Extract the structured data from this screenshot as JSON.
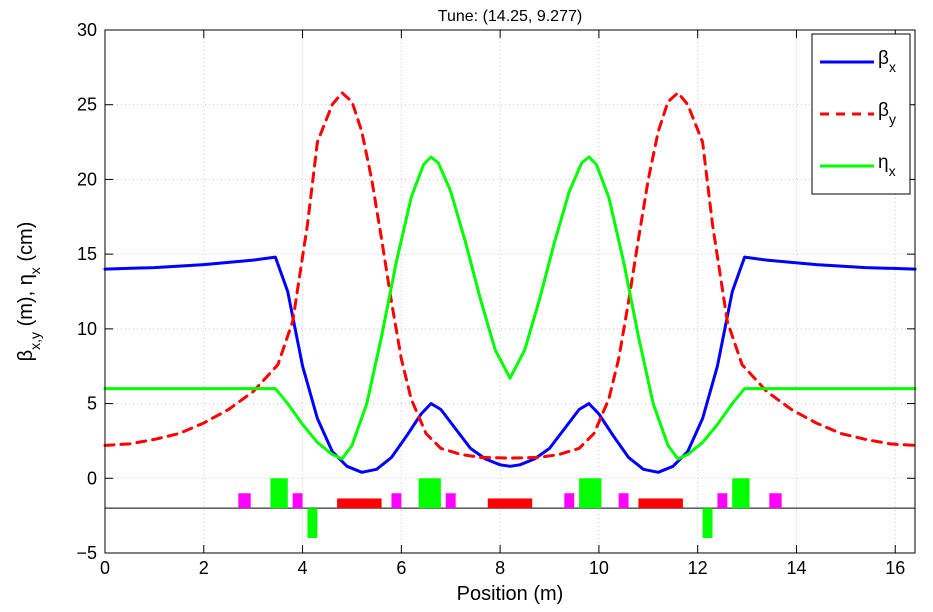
{
  "chart_data": {
    "type": "line",
    "title": "Tune: (14.25, 9.277)",
    "xlabel": "Position (m)",
    "ylabel_parts": [
      {
        "text": "β",
        "sub": false
      },
      {
        "text": "x,y",
        "sub": true
      },
      {
        "text": " (m), η",
        "sub": false
      },
      {
        "text": "x",
        "sub": true
      },
      {
        "text": " (cm)",
        "sub": false
      }
    ],
    "xlim": [
      0,
      16.4
    ],
    "ylim": [
      -5,
      30
    ],
    "xticks": [
      0,
      2,
      4,
      6,
      8,
      10,
      12,
      14,
      16
    ],
    "yticks": [
      -5,
      0,
      5,
      10,
      15,
      20,
      25,
      30
    ],
    "grid": true,
    "legend_position": "top-right",
    "series": [
      {
        "name": "β",
        "name_sub": "x",
        "color": "#0000ff",
        "dash": "solid",
        "points": [
          [
            0,
            14
          ],
          [
            1,
            14.1
          ],
          [
            2,
            14.3
          ],
          [
            3,
            14.6
          ],
          [
            3.45,
            14.8
          ],
          [
            3.7,
            12.5
          ],
          [
            4.0,
            7.5
          ],
          [
            4.3,
            4.0
          ],
          [
            4.6,
            1.8
          ],
          [
            4.9,
            0.8
          ],
          [
            5.2,
            0.4
          ],
          [
            5.5,
            0.6
          ],
          [
            5.8,
            1.4
          ],
          [
            6.1,
            2.8
          ],
          [
            6.4,
            4.3
          ],
          [
            6.6,
            5.0
          ],
          [
            6.8,
            4.6
          ],
          [
            7.1,
            3.3
          ],
          [
            7.4,
            2.0
          ],
          [
            7.7,
            1.3
          ],
          [
            8.0,
            0.9
          ],
          [
            8.2,
            0.8
          ],
          [
            8.4,
            0.9
          ],
          [
            8.7,
            1.3
          ],
          [
            9.0,
            2.0
          ],
          [
            9.3,
            3.3
          ],
          [
            9.6,
            4.6
          ],
          [
            9.8,
            5.0
          ],
          [
            10.0,
            4.3
          ],
          [
            10.3,
            2.8
          ],
          [
            10.6,
            1.4
          ],
          [
            10.9,
            0.6
          ],
          [
            11.2,
            0.4
          ],
          [
            11.5,
            0.8
          ],
          [
            11.8,
            1.8
          ],
          [
            12.1,
            4.0
          ],
          [
            12.4,
            7.5
          ],
          [
            12.7,
            12.5
          ],
          [
            12.95,
            14.8
          ],
          [
            13.4,
            14.6
          ],
          [
            14.4,
            14.3
          ],
          [
            15.4,
            14.1
          ],
          [
            16.4,
            14
          ]
        ]
      },
      {
        "name": "β",
        "name_sub": "y",
        "color": "#ff0000",
        "dash": "dashed",
        "points": [
          [
            0,
            2.2
          ],
          [
            0.5,
            2.3
          ],
          [
            1,
            2.6
          ],
          [
            1.5,
            3.0
          ],
          [
            2,
            3.7
          ],
          [
            2.5,
            4.6
          ],
          [
            3,
            5.8
          ],
          [
            3.5,
            7.6
          ],
          [
            3.8,
            10.5
          ],
          [
            4.1,
            17.0
          ],
          [
            4.3,
            22.5
          ],
          [
            4.6,
            25.0
          ],
          [
            4.8,
            25.8
          ],
          [
            5.0,
            25.2
          ],
          [
            5.2,
            23.2
          ],
          [
            5.4,
            20.0
          ],
          [
            5.6,
            16.0
          ],
          [
            5.8,
            11.8
          ],
          [
            6.0,
            8.0
          ],
          [
            6.2,
            5.3
          ],
          [
            6.5,
            3.0
          ],
          [
            6.8,
            2.0
          ],
          [
            7.2,
            1.6
          ],
          [
            7.6,
            1.4
          ],
          [
            8.2,
            1.35
          ],
          [
            8.8,
            1.4
          ],
          [
            9.2,
            1.6
          ],
          [
            9.6,
            2.0
          ],
          [
            9.9,
            3.0
          ],
          [
            10.2,
            5.3
          ],
          [
            10.4,
            8.0
          ],
          [
            10.6,
            11.8
          ],
          [
            10.8,
            16.0
          ],
          [
            11.0,
            20.0
          ],
          [
            11.2,
            23.2
          ],
          [
            11.4,
            25.2
          ],
          [
            11.6,
            25.8
          ],
          [
            11.8,
            25.0
          ],
          [
            12.1,
            22.5
          ],
          [
            12.3,
            17.0
          ],
          [
            12.6,
            10.5
          ],
          [
            12.9,
            7.6
          ],
          [
            13.4,
            5.8
          ],
          [
            13.9,
            4.6
          ],
          [
            14.4,
            3.7
          ],
          [
            14.9,
            3.0
          ],
          [
            15.4,
            2.6
          ],
          [
            15.9,
            2.3
          ],
          [
            16.4,
            2.2
          ]
        ]
      },
      {
        "name": "η",
        "name_sub": "x",
        "color": "#00ff00",
        "dash": "solid",
        "points": [
          [
            0,
            6
          ],
          [
            1,
            6
          ],
          [
            2,
            6
          ],
          [
            3,
            6
          ],
          [
            3.45,
            6
          ],
          [
            3.7,
            5.0
          ],
          [
            4.0,
            3.6
          ],
          [
            4.3,
            2.4
          ],
          [
            4.6,
            1.6
          ],
          [
            4.8,
            1.3
          ],
          [
            5.0,
            2.2
          ],
          [
            5.3,
            5.0
          ],
          [
            5.6,
            9.5
          ],
          [
            5.9,
            14.5
          ],
          [
            6.2,
            18.8
          ],
          [
            6.45,
            21.0
          ],
          [
            6.6,
            21.5
          ],
          [
            6.75,
            21.1
          ],
          [
            7.0,
            19.2
          ],
          [
            7.3,
            15.8
          ],
          [
            7.6,
            12.0
          ],
          [
            7.9,
            8.6
          ],
          [
            8.2,
            6.7
          ],
          [
            8.5,
            8.6
          ],
          [
            8.8,
            12.0
          ],
          [
            9.1,
            15.8
          ],
          [
            9.4,
            19.2
          ],
          [
            9.65,
            21.1
          ],
          [
            9.8,
            21.5
          ],
          [
            9.95,
            21.0
          ],
          [
            10.2,
            18.8
          ],
          [
            10.5,
            14.5
          ],
          [
            10.8,
            9.5
          ],
          [
            11.1,
            5.0
          ],
          [
            11.4,
            2.2
          ],
          [
            11.6,
            1.3
          ],
          [
            11.8,
            1.6
          ],
          [
            12.1,
            2.4
          ],
          [
            12.4,
            3.6
          ],
          [
            12.7,
            5.0
          ],
          [
            12.95,
            6
          ],
          [
            13.4,
            6
          ],
          [
            14.4,
            6
          ],
          [
            15.4,
            6
          ],
          [
            16.4,
            6
          ]
        ]
      }
    ],
    "lattice_baseline": -2,
    "lattice_elements": [
      {
        "kind": "sextupole",
        "color": "#ff00ff",
        "x0": 2.7,
        "x1": 2.95,
        "y0": -2,
        "y1": -1
      },
      {
        "kind": "quadrupole",
        "color": "#00ff00",
        "x0": 3.35,
        "x1": 3.7,
        "y0": -2,
        "y1": 0
      },
      {
        "kind": "sextupole",
        "color": "#ff00ff",
        "x0": 3.8,
        "x1": 4.0,
        "y0": -2,
        "y1": -1
      },
      {
        "kind": "quadrupole",
        "color": "#00ff00",
        "x0": 4.1,
        "x1": 4.3,
        "y0": -4,
        "y1": -2
      },
      {
        "kind": "dipole",
        "color": "#ff0000",
        "x0": 4.7,
        "x1": 5.6,
        "y0": -2,
        "y1": -1.35
      },
      {
        "kind": "sextupole",
        "color": "#ff00ff",
        "x0": 5.8,
        "x1": 6.0,
        "y0": -2,
        "y1": -1
      },
      {
        "kind": "quadrupole",
        "color": "#00ff00",
        "x0": 6.35,
        "x1": 6.8,
        "y0": -2,
        "y1": 0
      },
      {
        "kind": "sextupole",
        "color": "#ff00ff",
        "x0": 6.9,
        "x1": 7.1,
        "y0": -2,
        "y1": -1
      },
      {
        "kind": "dipole",
        "color": "#ff0000",
        "x0": 7.75,
        "x1": 8.65,
        "y0": -2,
        "y1": -1.35
      },
      {
        "kind": "sextupole",
        "color": "#ff00ff",
        "x0": 9.3,
        "x1": 9.5,
        "y0": -2,
        "y1": -1
      },
      {
        "kind": "quadrupole",
        "color": "#00ff00",
        "x0": 9.6,
        "x1": 10.05,
        "y0": -2,
        "y1": 0
      },
      {
        "kind": "sextupole",
        "color": "#ff00ff",
        "x0": 10.4,
        "x1": 10.6,
        "y0": -2,
        "y1": -1
      },
      {
        "kind": "dipole",
        "color": "#ff0000",
        "x0": 10.8,
        "x1": 11.7,
        "y0": -2,
        "y1": -1.35
      },
      {
        "kind": "quadrupole",
        "color": "#00ff00",
        "x0": 12.1,
        "x1": 12.3,
        "y0": -4,
        "y1": -2
      },
      {
        "kind": "sextupole",
        "color": "#ff00ff",
        "x0": 12.4,
        "x1": 12.6,
        "y0": -2,
        "y1": -1
      },
      {
        "kind": "quadrupole",
        "color": "#00ff00",
        "x0": 12.7,
        "x1": 13.05,
        "y0": -2,
        "y1": 0
      },
      {
        "kind": "sextupole",
        "color": "#ff00ff",
        "x0": 13.45,
        "x1": 13.7,
        "y0": -2,
        "y1": -1
      }
    ]
  }
}
